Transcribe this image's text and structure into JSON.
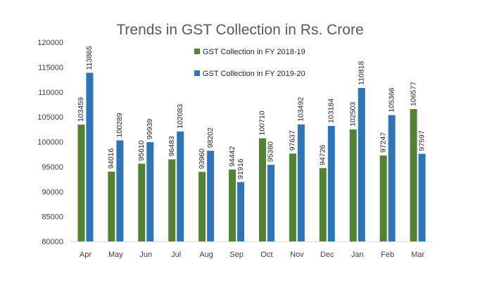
{
  "chart_data": {
    "type": "bar",
    "title": "Trends in GST Collection in Rs. Crore",
    "xlabel": "",
    "ylabel": "",
    "ylim": [
      80000,
      120000
    ],
    "yticks": [
      80000,
      85000,
      90000,
      95000,
      100000,
      105000,
      110000,
      115000,
      120000
    ],
    "grid": false,
    "legend_position": "top-center",
    "categories": [
      "Apr",
      "May",
      "Jun",
      "Jul",
      "Aug",
      "Sep",
      "Oct",
      "Nov",
      "Dec",
      "Jan",
      "Feb",
      "Mar"
    ],
    "series": [
      {
        "name": "GST Collection in FY 2018-19",
        "color": "#548235",
        "values": [
          103459,
          94016,
          95610,
          96483,
          93960,
          94442,
          100710,
          97637,
          94726,
          102503,
          97247,
          106577
        ]
      },
      {
        "name": "GST Collection in FY 2019-20",
        "color": "#2E75B6",
        "values": [
          113865,
          100289,
          99939,
          102083,
          98202,
          91916,
          95380,
          103492,
          103184,
          110818,
          105366,
          97597
        ]
      }
    ]
  }
}
